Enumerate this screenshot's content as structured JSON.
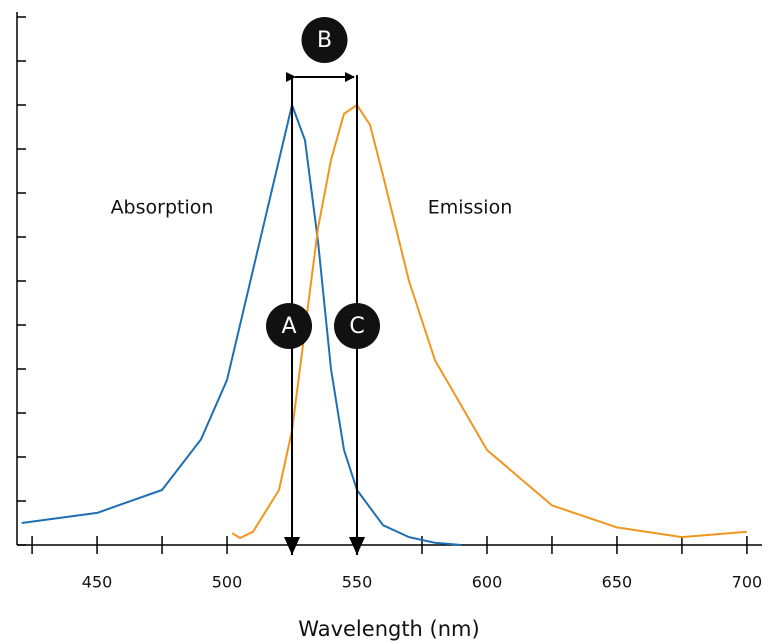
{
  "chart_data": {
    "type": "line",
    "x_label": "Wavelength (nm)",
    "xlim": [
      419.2,
      705.8
    ],
    "xticks": [
      450,
      500,
      550,
      600,
      650,
      700
    ],
    "xminorticks": [
      425,
      475,
      525,
      575,
      625,
      675
    ],
    "ylim": [
      0,
      1.2
    ],
    "yticks": [
      0,
      0.1,
      0.2,
      0.3,
      0.4,
      0.5,
      0.6,
      0.7,
      0.8,
      0.9,
      1.0,
      1.1,
      1.2
    ],
    "annotations": [
      "A",
      "B",
      "C"
    ],
    "series": [
      {
        "name": "Absorption",
        "color": "#1f6fb2",
        "x": [
          421,
          450,
          475,
          490,
          500,
          510,
          520,
          525,
          530,
          535,
          540,
          545,
          550,
          560,
          570,
          580,
          590
        ],
        "values": [
          0.05,
          0.073,
          0.125,
          0.24,
          0.375,
          0.625,
          0.875,
          1.0,
          0.92,
          0.69,
          0.4,
          0.216,
          0.125,
          0.045,
          0.018,
          0.005,
          0
        ]
      },
      {
        "name": "Emission",
        "color": "#f0961e",
        "x": [
          502,
          505,
          510,
          520,
          525,
          530,
          535,
          540,
          545,
          550,
          555,
          560,
          570,
          580,
          600,
          625,
          650,
          675,
          700
        ],
        "values": [
          0.027,
          0.016,
          0.03,
          0.125,
          0.26,
          0.49,
          0.72,
          0.875,
          0.98,
          1.0,
          0.955,
          0.84,
          0.6,
          0.42,
          0.216,
          0.09,
          0.04,
          0.018,
          0.03
        ]
      }
    ]
  }
}
